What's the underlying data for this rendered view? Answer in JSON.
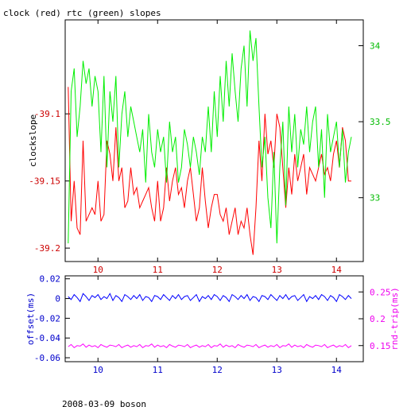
{
  "chart_data": [
    {
      "type": "line",
      "title": "clock (red) rtc (green) slopes",
      "ylabel_left": "clockslope",
      "ylabel_right": "",
      "xlim": [
        9.45,
        14.45
      ],
      "ylim_left": [
        -39.21,
        -39.03
      ],
      "ylim_right": [
        32.58,
        34.17
      ],
      "x_ticks": [
        10,
        11,
        12,
        13,
        14
      ],
      "y_ticks_left": [
        -39.1,
        -39.15,
        -39.2
      ],
      "y_ticks_right": [
        33,
        33.5,
        34
      ],
      "series": [
        {
          "color": "#ff0000",
          "axis": "left",
          "x": [
            9.5,
            9.55,
            9.6,
            9.65,
            9.7,
            9.75,
            9.8,
            9.85,
            9.9,
            9.95,
            10.0,
            10.05,
            10.1,
            10.15,
            10.2,
            10.25,
            10.3,
            10.35,
            10.4,
            10.45,
            10.5,
            10.55,
            10.6,
            10.65,
            10.7,
            10.75,
            10.8,
            10.85,
            10.9,
            10.95,
            11.0,
            11.05,
            11.1,
            11.15,
            11.2,
            11.25,
            11.3,
            11.35,
            11.4,
            11.45,
            11.5,
            11.55,
            11.6,
            11.65,
            11.7,
            11.75,
            11.8,
            11.85,
            11.9,
            11.95,
            12.0,
            12.05,
            12.1,
            12.15,
            12.2,
            12.25,
            12.3,
            12.35,
            12.4,
            12.45,
            12.5,
            12.55,
            12.6,
            12.65,
            12.7,
            12.75,
            12.8,
            12.85,
            12.9,
            12.95,
            13.0,
            13.05,
            13.1,
            13.15,
            13.2,
            13.25,
            13.3,
            13.35,
            13.4,
            13.45,
            13.5,
            13.55,
            13.6,
            13.65,
            13.7,
            13.75,
            13.8,
            13.85,
            13.9,
            13.95,
            14.0,
            14.05,
            14.1,
            14.15,
            14.2,
            14.25
          ],
          "values": [
            -39.08,
            -39.18,
            -39.15,
            -39.185,
            -39.19,
            -39.12,
            -39.18,
            -39.175,
            -39.17,
            -39.175,
            -39.15,
            -39.18,
            -39.175,
            -39.12,
            -39.13,
            -39.15,
            -39.11,
            -39.15,
            -39.14,
            -39.17,
            -39.165,
            -39.14,
            -39.16,
            -39.155,
            -39.17,
            -39.165,
            -39.16,
            -39.155,
            -39.17,
            -39.18,
            -39.15,
            -39.18,
            -39.17,
            -39.14,
            -39.165,
            -39.15,
            -39.14,
            -39.16,
            -39.155,
            -39.17,
            -39.15,
            -39.14,
            -39.16,
            -39.18,
            -39.17,
            -39.14,
            -39.165,
            -39.185,
            -39.17,
            -39.16,
            -39.16,
            -39.175,
            -39.18,
            -39.17,
            -39.19,
            -39.18,
            -39.17,
            -39.19,
            -39.18,
            -39.185,
            -39.17,
            -39.19,
            -39.205,
            -39.17,
            -39.12,
            -39.15,
            -39.1,
            -39.13,
            -39.12,
            -39.14,
            -39.1,
            -39.11,
            -39.14,
            -39.17,
            -39.14,
            -39.16,
            -39.13,
            -39.15,
            -39.14,
            -39.13,
            -39.16,
            -39.14,
            -39.145,
            -39.15,
            -39.14,
            -39.13,
            -39.145,
            -39.14,
            -39.15,
            -39.13,
            -39.12,
            -39.14,
            -39.11,
            -39.12,
            -39.15,
            -39.15
          ]
        },
        {
          "color": "#00ee00",
          "axis": "right",
          "x": [
            9.5,
            9.55,
            9.6,
            9.65,
            9.7,
            9.75,
            9.8,
            9.85,
            9.9,
            9.95,
            10.0,
            10.05,
            10.1,
            10.15,
            10.2,
            10.25,
            10.3,
            10.35,
            10.4,
            10.45,
            10.5,
            10.55,
            10.6,
            10.65,
            10.7,
            10.75,
            10.8,
            10.85,
            10.9,
            10.95,
            11.0,
            11.05,
            11.1,
            11.15,
            11.2,
            11.25,
            11.3,
            11.35,
            11.4,
            11.45,
            11.5,
            11.55,
            11.6,
            11.65,
            11.7,
            11.75,
            11.8,
            11.85,
            11.9,
            11.95,
            12.0,
            12.05,
            12.1,
            12.15,
            12.2,
            12.25,
            12.3,
            12.35,
            12.4,
            12.45,
            12.5,
            12.55,
            12.6,
            12.65,
            12.7,
            12.75,
            12.8,
            12.85,
            12.9,
            12.95,
            13.0,
            13.05,
            13.1,
            13.15,
            13.2,
            13.25,
            13.3,
            13.35,
            13.4,
            13.45,
            13.5,
            13.55,
            13.6,
            13.65,
            13.7,
            13.75,
            13.8,
            13.85,
            13.9,
            13.95,
            14.0,
            14.05,
            14.1,
            14.15,
            14.2,
            14.25
          ],
          "values": [
            32.7,
            33.7,
            33.85,
            33.4,
            33.6,
            33.9,
            33.75,
            33.85,
            33.6,
            33.8,
            33.7,
            33.3,
            33.8,
            33.2,
            33.7,
            33.5,
            33.8,
            33.2,
            33.55,
            33.7,
            33.4,
            33.6,
            33.5,
            33.4,
            33.3,
            33.45,
            33.1,
            33.55,
            33.3,
            33.2,
            33.45,
            33.3,
            33.4,
            33.1,
            33.5,
            33.3,
            33.4,
            33.1,
            33.2,
            33.45,
            33.35,
            33.2,
            33.4,
            33.3,
            33.15,
            33.4,
            33.3,
            33.6,
            33.3,
            33.7,
            33.4,
            33.8,
            33.5,
            33.9,
            33.6,
            33.95,
            33.7,
            33.5,
            33.85,
            34.0,
            33.6,
            34.1,
            33.9,
            34.05,
            33.6,
            33.2,
            33.4,
            33.0,
            32.8,
            33.3,
            32.7,
            33.2,
            33.5,
            32.95,
            33.6,
            33.3,
            33.55,
            33.2,
            33.45,
            33.35,
            33.6,
            33.3,
            33.5,
            33.6,
            33.2,
            33.45,
            33.0,
            33.55,
            33.3,
            33.4,
            33.5,
            33.2,
            33.45,
            33.1,
            33.3,
            33.4
          ]
        }
      ]
    },
    {
      "type": "line",
      "ylabel_left": "offset(ms)",
      "ylabel_right": "rnd-trip(ms)",
      "xlim": [
        9.45,
        14.45
      ],
      "ylim_left": [
        -0.064,
        0.023
      ],
      "ylim_right": [
        0.12,
        0.28
      ],
      "x_ticks": [
        10,
        11,
        12,
        13,
        14
      ],
      "y_ticks_left": [
        "0.02",
        "0",
        "-0.02",
        "-0.04",
        "-0.06"
      ],
      "y_ticks_right": [
        0.25,
        0.2,
        0.15
      ],
      "series": [
        {
          "color": "#0000ff",
          "axis": "left",
          "x_start": 9.5,
          "x_step": 0.05,
          "values": [
            0.002,
            -0.001,
            0.004,
            0.001,
            -0.003,
            0.005,
            0.002,
            -0.002,
            0.003,
            0.001,
            0.004,
            -0.001,
            0.002,
            0.0,
            0.005,
            -0.002,
            0.003,
            0.001,
            -0.003,
            0.004,
            0.002,
            -0.001,
            0.003,
            0.0,
            0.004,
            -0.002,
            0.002,
            0.001,
            -0.003,
            0.003,
            0.002,
            -0.001,
            0.004,
            0.001,
            -0.002,
            0.003,
            0.0,
            0.004,
            -0.001,
            0.002,
            0.003,
            -0.002,
            0.001,
            0.004,
            -0.003,
            0.002,
            0.0,
            0.003,
            -0.001,
            0.004,
            0.002,
            -0.002,
            0.003,
            0.001,
            -0.003,
            0.004,
            0.002,
            -0.001,
            0.003,
            0.0,
            0.004,
            -0.002,
            0.002,
            0.001,
            -0.003,
            0.003,
            0.002,
            -0.001,
            0.004,
            0.001,
            -0.002,
            0.003,
            0.0,
            0.004,
            -0.001,
            0.002,
            0.003,
            -0.002,
            0.001,
            0.004,
            -0.003,
            0.002,
            0.0,
            0.003,
            -0.001,
            0.004,
            0.002,
            -0.002,
            0.003,
            0.001,
            -0.003,
            0.004,
            0.002,
            -0.001,
            0.003,
            0.0
          ]
        },
        {
          "color": "#ff00ff",
          "axis": "right",
          "x_start": 9.5,
          "x_step": 0.05,
          "values": [
            0.148,
            0.152,
            0.146,
            0.15,
            0.149,
            0.153,
            0.147,
            0.151,
            0.148,
            0.15,
            0.146,
            0.152,
            0.149,
            0.147,
            0.151,
            0.15,
            0.148,
            0.152,
            0.146,
            0.149,
            0.151,
            0.147,
            0.15,
            0.148,
            0.152,
            0.146,
            0.15,
            0.149,
            0.153,
            0.147,
            0.151,
            0.148,
            0.15,
            0.146,
            0.152,
            0.149,
            0.147,
            0.151,
            0.15,
            0.148,
            0.152,
            0.146,
            0.149,
            0.151,
            0.147,
            0.15,
            0.148,
            0.152,
            0.146,
            0.15,
            0.149,
            0.153,
            0.147,
            0.151,
            0.148,
            0.15,
            0.146,
            0.152,
            0.149,
            0.147,
            0.151,
            0.15,
            0.148,
            0.152,
            0.146,
            0.149,
            0.151,
            0.147,
            0.15,
            0.148,
            0.152,
            0.146,
            0.15,
            0.149,
            0.153,
            0.147,
            0.151,
            0.148,
            0.15,
            0.146,
            0.152,
            0.149,
            0.147,
            0.151,
            0.15,
            0.148,
            0.152,
            0.146,
            0.149,
            0.151,
            0.147,
            0.15,
            0.148,
            0.152,
            0.146,
            0.15
          ]
        }
      ]
    }
  ],
  "footer": {
    "caption": "2008-03-09 boson"
  }
}
